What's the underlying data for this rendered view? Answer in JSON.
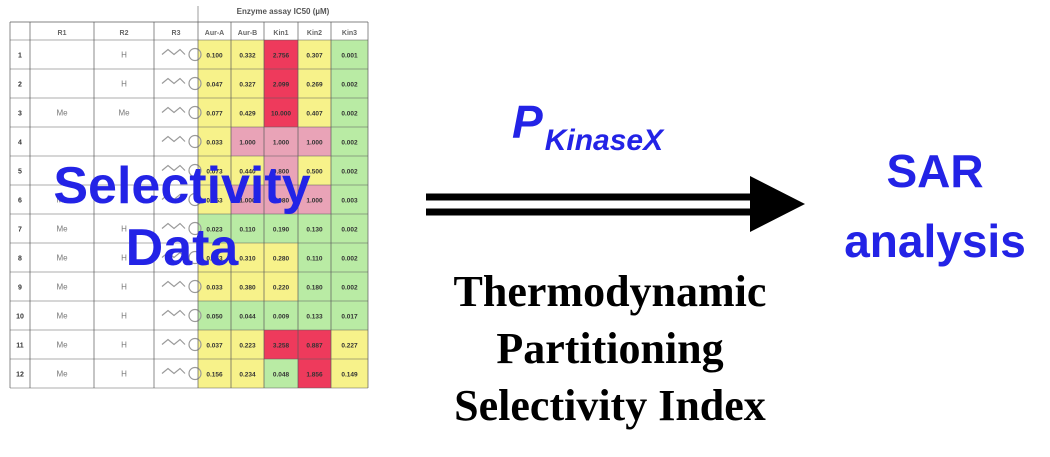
{
  "table": {
    "header_caption": "Enzyme assay IC50 (µM)",
    "columns": [
      "R1",
      "R2",
      "R3",
      "Aur-A",
      "Aur-B",
      "Kin1",
      "Kin2",
      "Kin3"
    ],
    "rows": [
      {
        "n": "1",
        "r1": "",
        "r2": "H",
        "v": [
          "0.100",
          "0.332",
          "2.756",
          "0.307",
          "0.001"
        ],
        "tone": [
          "y",
          "y",
          "r",
          "y",
          "g"
        ]
      },
      {
        "n": "2",
        "r1": "",
        "r2": "H",
        "v": [
          "0.047",
          "0.327",
          "2.099",
          "0.269",
          "0.002"
        ],
        "tone": [
          "y",
          "y",
          "r",
          "y",
          "g"
        ]
      },
      {
        "n": "3",
        "r1": "Me",
        "r2": "Me",
        "v": [
          "0.077",
          "0.429",
          "10.000",
          "0.407",
          "0.002"
        ],
        "tone": [
          "y",
          "y",
          "r",
          "y",
          "g"
        ]
      },
      {
        "n": "4",
        "r1": "",
        "r2": "",
        "v": [
          "0.033",
          "1.000",
          "1.000",
          "1.000",
          "0.002"
        ],
        "tone": [
          "y",
          "p",
          "p",
          "p",
          "g"
        ]
      },
      {
        "n": "5",
        "r1": "",
        "r2": "",
        "v": [
          "0.073",
          "0.440",
          "0.800",
          "0.500",
          "0.002"
        ],
        "tone": [
          "y",
          "y",
          "p",
          "y",
          "g"
        ]
      },
      {
        "n": "6",
        "r1": "Me",
        "r2": "H",
        "v": [
          "0.053",
          "1.000",
          "0.980",
          "1.000",
          "0.003"
        ],
        "tone": [
          "y",
          "p",
          "p",
          "p",
          "g"
        ]
      },
      {
        "n": "7",
        "r1": "Me",
        "r2": "H",
        "v": [
          "0.023",
          "0.110",
          "0.190",
          "0.130",
          "0.002"
        ],
        "tone": [
          "g",
          "g",
          "g",
          "g",
          "g"
        ]
      },
      {
        "n": "8",
        "r1": "Me",
        "r2": "H",
        "v": [
          "0.053",
          "0.310",
          "0.280",
          "0.110",
          "0.002"
        ],
        "tone": [
          "y",
          "y",
          "y",
          "g",
          "g"
        ]
      },
      {
        "n": "9",
        "r1": "Me",
        "r2": "H",
        "v": [
          "0.033",
          "0.380",
          "0.220",
          "0.180",
          "0.002"
        ],
        "tone": [
          "y",
          "y",
          "y",
          "g",
          "g"
        ]
      },
      {
        "n": "10",
        "r1": "Me",
        "r2": "H",
        "v": [
          "0.050",
          "0.044",
          "0.009",
          "0.133",
          "0.017"
        ],
        "tone": [
          "g",
          "g",
          "g",
          "g",
          "g"
        ]
      },
      {
        "n": "11",
        "r1": "Me",
        "r2": "H",
        "v": [
          "0.037",
          "0.223",
          "3.258",
          "0.887",
          "0.227"
        ],
        "tone": [
          "y",
          "y",
          "r",
          "r",
          "y"
        ]
      },
      {
        "n": "12",
        "r1": "Me",
        "r2": "H",
        "v": [
          "0.156",
          "0.234",
          "0.048",
          "1.856",
          "0.149"
        ],
        "tone": [
          "y",
          "y",
          "g",
          "r",
          "y"
        ]
      }
    ]
  },
  "overlay": {
    "line1": "Selectivity",
    "line2": "Data"
  },
  "index_symbol": {
    "main": "P",
    "subscript": "KinaseX"
  },
  "method": {
    "line1": "Thermodynamic",
    "line2": "Partitioning",
    "line3": "Selectivity Index"
  },
  "result": {
    "line1": "SAR",
    "line2": "analysis"
  },
  "colors": {
    "accent_blue": "#2323e6",
    "cell_yellow": "#f7f28a",
    "cell_green": "#b9eba4",
    "cell_red": "#ee3a5c",
    "cell_pink": "#e9a3b7",
    "grid": "#5a5a5a"
  }
}
